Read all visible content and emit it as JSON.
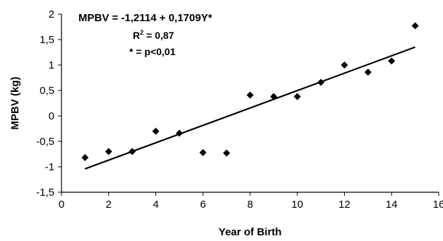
{
  "chart_data": {
    "type": "scatter",
    "xlabel": "Year of Birth",
    "ylabel": "MPBV (kg)",
    "xlim": [
      0,
      16
    ],
    "ylim": [
      -1.5,
      2
    ],
    "x_ticks": [
      "0",
      "2",
      "4",
      "6",
      "8",
      "10",
      "12",
      "14",
      "16"
    ],
    "y_ticks": [
      "2",
      "1,5",
      "1",
      "0,5",
      "0",
      "-0,5",
      "-1",
      "-1,5"
    ],
    "grid": false,
    "legend": "none",
    "points": [
      {
        "x": 1,
        "y": -0.82
      },
      {
        "x": 2,
        "y": -0.7
      },
      {
        "x": 3,
        "y": -0.7
      },
      {
        "x": 4,
        "y": -0.3
      },
      {
        "x": 5,
        "y": -0.34
      },
      {
        "x": 6,
        "y": -0.72
      },
      {
        "x": 7,
        "y": -0.73
      },
      {
        "x": 8,
        "y": 0.41
      },
      {
        "x": 9,
        "y": 0.38
      },
      {
        "x": 10,
        "y": 0.38
      },
      {
        "x": 11,
        "y": 0.66
      },
      {
        "x": 12,
        "y": 1.0
      },
      {
        "x": 13,
        "y": 0.86
      },
      {
        "x": 14,
        "y": 1.08
      },
      {
        "x": 15,
        "y": 1.77
      }
    ],
    "trendline": {
      "intercept": -1.2114,
      "slope": 0.1709,
      "x_range": [
        1,
        15
      ]
    },
    "annotations": {
      "equation": "MPBV = -1,2114 + 0,1709Y*",
      "r2_prefix": "R",
      "r2_sup": "2",
      "r2_suffix": " = 0,87",
      "significance": "* = p<0,01"
    },
    "colors": {
      "marker": "#000000",
      "line": "#000000",
      "axis": "#000000"
    }
  }
}
